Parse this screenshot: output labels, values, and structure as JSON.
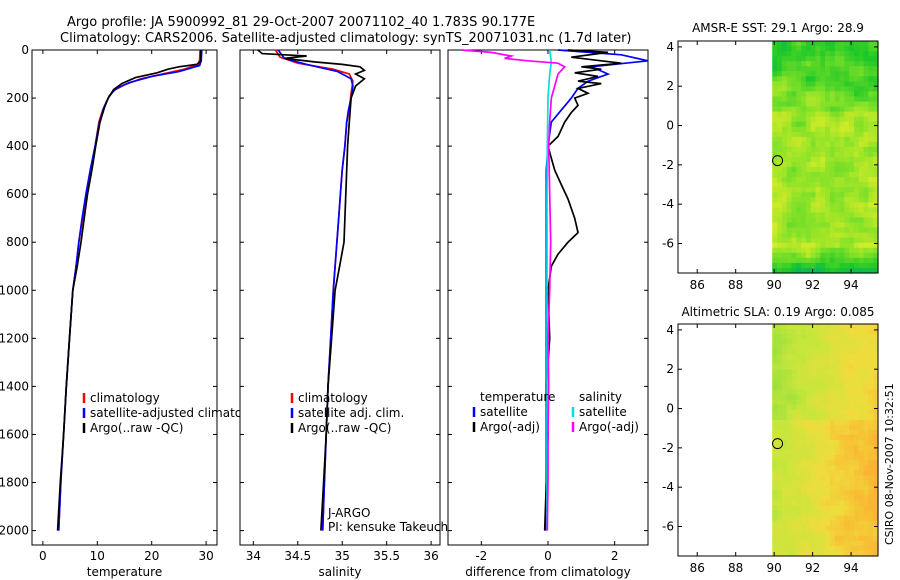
{
  "header": {
    "line1": "Argo profile: JA 5900992_81 29-Oct-2007 20071102_40 1.783S 90.177E",
    "line2": "Climatology: CARS2006. Satellite-adjusted climatology: synTS_20071031.nc (1.7d later)"
  },
  "footer": {
    "stamp": "CSIRO 08-Nov-2007 10:32:51"
  },
  "colors": {
    "climatology": "#ff0000",
    "satellite": "#0000ff",
    "argo": "#000000",
    "sat_diff_salinity": "#00e0e0",
    "argo_diff_salinity": "#ff00ff"
  },
  "chart_data": [
    {
      "type": "line",
      "xlabel": "temperature",
      "ylabel": "",
      "xlim": [
        -2,
        32
      ],
      "ylim": [
        2060,
        0
      ],
      "xticks": [
        0,
        10,
        20,
        30
      ],
      "yticks": [
        0,
        200,
        400,
        600,
        800,
        1000,
        1200,
        1400,
        1600,
        1800,
        2000
      ],
      "legend": {
        "placement": "lower-center",
        "entries": [
          "climatology",
          "satellite-adjusted climatology",
          "Argo(..raw -QC)"
        ]
      },
      "series": [
        {
          "name": "climatology",
          "color": "#ff0000",
          "points": [
            [
              28.9,
              0
            ],
            [
              28.8,
              40
            ],
            [
              28.6,
              60
            ],
            [
              26,
              80
            ],
            [
              22,
              100
            ],
            [
              18,
              120
            ],
            [
              15,
              145
            ],
            [
              13,
              170
            ],
            [
              12,
              200
            ],
            [
              11,
              250
            ],
            [
              10.3,
              300
            ],
            [
              9.6,
              400
            ],
            [
              8.8,
              500
            ],
            [
              8,
              600
            ],
            [
              7.3,
              700
            ],
            [
              6.6,
              800
            ],
            [
              6.1,
              900
            ],
            [
              5.5,
              1000
            ],
            [
              4.9,
              1200
            ],
            [
              4.3,
              1400
            ],
            [
              3.8,
              1600
            ],
            [
              3.3,
              1800
            ],
            [
              2.9,
              2000
            ]
          ]
        },
        {
          "name": "satellite-adjusted climatology",
          "color": "#0000ff",
          "points": [
            [
              29.2,
              0
            ],
            [
              29.1,
              45
            ],
            [
              28.8,
              65
            ],
            [
              25,
              90
            ],
            [
              20,
              110
            ],
            [
              16,
              135
            ],
            [
              13.5,
              160
            ],
            [
              12.2,
              190
            ],
            [
              11.2,
              240
            ],
            [
              10.4,
              300
            ],
            [
              9.6,
              400
            ],
            [
              8.7,
              500
            ],
            [
              7.9,
              600
            ],
            [
              7.2,
              700
            ],
            [
              6.6,
              800
            ],
            [
              6.1,
              900
            ],
            [
              5.5,
              1000
            ],
            [
              4.9,
              1200
            ],
            [
              4.3,
              1400
            ],
            [
              3.8,
              1600
            ],
            [
              3.3,
              1800
            ],
            [
              2.9,
              2000
            ]
          ]
        },
        {
          "name": "Argo(..raw -QC)",
          "color": "#000000",
          "points": [
            [
              29,
              0
            ],
            [
              29,
              45
            ],
            [
              28.3,
              60
            ],
            [
              25,
              70
            ],
            [
              23,
              80
            ],
            [
              21,
              95
            ],
            [
              17,
              115
            ],
            [
              14.5,
              140
            ],
            [
              13,
              165
            ],
            [
              12,
              200
            ],
            [
              11.3,
              240
            ],
            [
              10.5,
              300
            ],
            [
              9.7,
              400
            ],
            [
              9,
              500
            ],
            [
              8.2,
              600
            ],
            [
              7.6,
              700
            ],
            [
              7,
              800
            ],
            [
              6.3,
              900
            ],
            [
              5.5,
              1000
            ],
            [
              4.9,
              1200
            ],
            [
              4.3,
              1400
            ],
            [
              3.8,
              1600
            ],
            [
              3.2,
              1800
            ],
            [
              2.7,
              2000
            ]
          ]
        }
      ]
    },
    {
      "type": "line",
      "xlabel": "salinity",
      "ylabel": "",
      "xlim": [
        33.85,
        36.1
      ],
      "ylim": [
        2060,
        0
      ],
      "xticks": [
        34,
        34.5,
        35,
        35.5,
        36
      ],
      "yticks": [
        0,
        200,
        400,
        600,
        800,
        1000,
        1200,
        1400,
        1600,
        1800,
        2000
      ],
      "legend": {
        "placement": "lower-center",
        "entries": [
          "climatology",
          "satellite adj. clim.",
          "Argo(..raw -QC)"
        ]
      },
      "annotations": [
        "J-ARGO",
        "PI: kensuke Takeuchi"
      ],
      "series": [
        {
          "name": "climatology",
          "color": "#ff0000",
          "points": [
            [
              34.25,
              0
            ],
            [
              34.3,
              30
            ],
            [
              34.5,
              55
            ],
            [
              34.9,
              80
            ],
            [
              35.08,
              100
            ],
            [
              35.12,
              130
            ],
            [
              35.1,
              180
            ],
            [
              35.08,
              250
            ],
            [
              35.05,
              300
            ],
            [
              35.03,
              400
            ],
            [
              35.0,
              500
            ],
            [
              34.98,
              600
            ],
            [
              34.96,
              700
            ],
            [
              34.94,
              800
            ],
            [
              34.92,
              900
            ],
            [
              34.9,
              1000
            ],
            [
              34.87,
              1200
            ],
            [
              34.84,
              1400
            ],
            [
              34.82,
              1600
            ],
            [
              34.8,
              1800
            ],
            [
              34.78,
              2000
            ]
          ]
        },
        {
          "name": "satellite adj. clim.",
          "color": "#0000ff",
          "points": [
            [
              34.28,
              0
            ],
            [
              34.35,
              35
            ],
            [
              34.6,
              60
            ],
            [
              34.95,
              90
            ],
            [
              35.1,
              120
            ],
            [
              35.12,
              150
            ],
            [
              35.1,
              200
            ],
            [
              35.07,
              250
            ],
            [
              35.05,
              300
            ],
            [
              35.03,
              400
            ],
            [
              35.0,
              500
            ],
            [
              34.98,
              600
            ],
            [
              34.96,
              700
            ],
            [
              34.94,
              800
            ],
            [
              34.92,
              900
            ],
            [
              34.9,
              1000
            ],
            [
              34.87,
              1200
            ],
            [
              34.84,
              1400
            ],
            [
              34.82,
              1600
            ],
            [
              34.8,
              1800
            ],
            [
              34.78,
              2000
            ]
          ]
        },
        {
          "name": "Argo(..raw -QC)",
          "color": "#000000",
          "points": [
            [
              34.05,
              0
            ],
            [
              34.1,
              15
            ],
            [
              34.35,
              20
            ],
            [
              34.6,
              25
            ],
            [
              34.35,
              35
            ],
            [
              34.7,
              50
            ],
            [
              35.0,
              60
            ],
            [
              35.2,
              70
            ],
            [
              35.25,
              85
            ],
            [
              35.15,
              100
            ],
            [
              35.25,
              120
            ],
            [
              35.15,
              150
            ],
            [
              35.1,
              200
            ],
            [
              35.08,
              300
            ],
            [
              35.06,
              400
            ],
            [
              35.05,
              500
            ],
            [
              35.04,
              600
            ],
            [
              35.03,
              700
            ],
            [
              35.02,
              800
            ],
            [
              34.97,
              900
            ],
            [
              34.92,
              1000
            ],
            [
              34.88,
              1200
            ],
            [
              34.84,
              1400
            ],
            [
              34.82,
              1600
            ],
            [
              34.79,
              1800
            ],
            [
              34.76,
              2000
            ]
          ]
        }
      ]
    },
    {
      "type": "line",
      "xlabel": "difference from climatology",
      "ylabel": "",
      "xlim": [
        -3,
        3
      ],
      "ylim": [
        2060,
        0
      ],
      "xticks": [
        -2,
        0,
        2
      ],
      "yticks": [
        0,
        200,
        400,
        600,
        800,
        1000,
        1200,
        1400,
        1600,
        1800,
        2000
      ],
      "legend": {
        "placement": "lower-center",
        "groups": [
          "temperature",
          "salinity"
        ],
        "entries": [
          "satellite",
          "Argo(-adj)",
          "satellite",
          "Argo(-adj)"
        ]
      },
      "series": [
        {
          "name": "satellite",
          "group": "temperature",
          "color": "#0000ff",
          "points": [
            [
              0.3,
              0
            ],
            [
              2.2,
              20
            ],
            [
              3,
              45
            ],
            [
              1.3,
              70
            ],
            [
              1.8,
              100
            ],
            [
              1.2,
              130
            ],
            [
              0.9,
              160
            ],
            [
              0.7,
              200
            ],
            [
              0.4,
              250
            ],
            [
              0.1,
              300
            ],
            [
              0.0,
              400
            ],
            [
              -0.05,
              500
            ],
            [
              -0.05,
              600
            ],
            [
              -0.05,
              800
            ],
            [
              -0.05,
              1000
            ],
            [
              -0.05,
              1200
            ],
            [
              -0.05,
              1400
            ],
            [
              -0.05,
              1600
            ],
            [
              -0.05,
              1800
            ],
            [
              -0.05,
              2000
            ]
          ]
        },
        {
          "name": "Argo(-adj)",
          "group": "temperature",
          "color": "#000000",
          "points": [
            [
              0.6,
              0
            ],
            [
              1.8,
              10
            ],
            [
              0.7,
              30
            ],
            [
              1.6,
              45
            ],
            [
              2.2,
              55
            ],
            [
              1.0,
              70
            ],
            [
              1.6,
              80
            ],
            [
              0.8,
              95
            ],
            [
              1.5,
              110
            ],
            [
              0.9,
              130
            ],
            [
              1.6,
              140
            ],
            [
              0.9,
              160
            ],
            [
              1.2,
              180
            ],
            [
              0.8,
              200
            ],
            [
              0.9,
              230
            ],
            [
              0.7,
              260
            ],
            [
              0.5,
              300
            ],
            [
              0.3,
              360
            ],
            [
              0.0,
              400
            ],
            [
              0.1,
              450
            ],
            [
              0.2,
              500
            ],
            [
              0.4,
              560
            ],
            [
              0.6,
              620
            ],
            [
              0.8,
              700
            ],
            [
              0.9,
              760
            ],
            [
              0.6,
              800
            ],
            [
              0.3,
              850
            ],
            [
              0.1,
              900
            ],
            [
              0.0,
              1000
            ],
            [
              0.05,
              1200
            ],
            [
              -0.05,
              1400
            ],
            [
              0.0,
              1600
            ],
            [
              -0.05,
              1800
            ],
            [
              -0.1,
              2000
            ]
          ]
        },
        {
          "name": "satellite",
          "group": "salinity",
          "color": "#00e0e0",
          "points": [
            [
              0.05,
              0
            ],
            [
              0.1,
              50
            ],
            [
              0.05,
              100
            ],
            [
              0.0,
              200
            ],
            [
              -0.02,
              400
            ],
            [
              -0.03,
              600
            ],
            [
              -0.03,
              800
            ],
            [
              -0.03,
              1000
            ],
            [
              -0.03,
              1400
            ],
            [
              -0.03,
              2000
            ]
          ]
        },
        {
          "name": "Argo(-adj)",
          "group": "salinity",
          "color": "#ff00ff",
          "points": [
            [
              -2.6,
              0
            ],
            [
              -1.7,
              10
            ],
            [
              -1.1,
              25
            ],
            [
              -1.3,
              35
            ],
            [
              -0.6,
              45
            ],
            [
              0.3,
              55
            ],
            [
              0.5,
              70
            ],
            [
              0.3,
              100
            ],
            [
              0.2,
              150
            ],
            [
              0.1,
              200
            ],
            [
              0.05,
              300
            ],
            [
              0.02,
              400
            ],
            [
              0.05,
              600
            ],
            [
              0.08,
              800
            ],
            [
              0.05,
              1000
            ],
            [
              0.0,
              1200
            ],
            [
              0.02,
              1400
            ],
            [
              0.0,
              1600
            ],
            [
              0.0,
              1800
            ],
            [
              -0.02,
              2000
            ]
          ]
        }
      ]
    },
    {
      "type": "heatmap",
      "title": "AMSR-E SST: 29.1 Argo: 28.9",
      "xlim": [
        85,
        95.4
      ],
      "ylim": [
        -7.5,
        4.3
      ],
      "xticks": [
        86,
        88,
        90,
        92,
        94
      ],
      "yticks": [
        4,
        2,
        0,
        -2,
        -4,
        -6
      ],
      "data_lon_range": [
        89.9,
        95.4
      ],
      "marker": {
        "lon": 90.177,
        "lat": -1.783
      },
      "colormap": "sst"
    },
    {
      "type": "heatmap",
      "title": "Altimetric SLA: 0.19 Argo: 0.085",
      "xlim": [
        85,
        95.4
      ],
      "ylim": [
        -7.5,
        4.3
      ],
      "xticks": [
        86,
        88,
        90,
        92,
        94
      ],
      "yticks": [
        4,
        2,
        0,
        -2,
        -4,
        -6
      ],
      "data_lon_range": [
        89.9,
        95.4
      ],
      "marker": {
        "lon": 90.177,
        "lat": -1.783
      },
      "colormap": "sla"
    }
  ]
}
